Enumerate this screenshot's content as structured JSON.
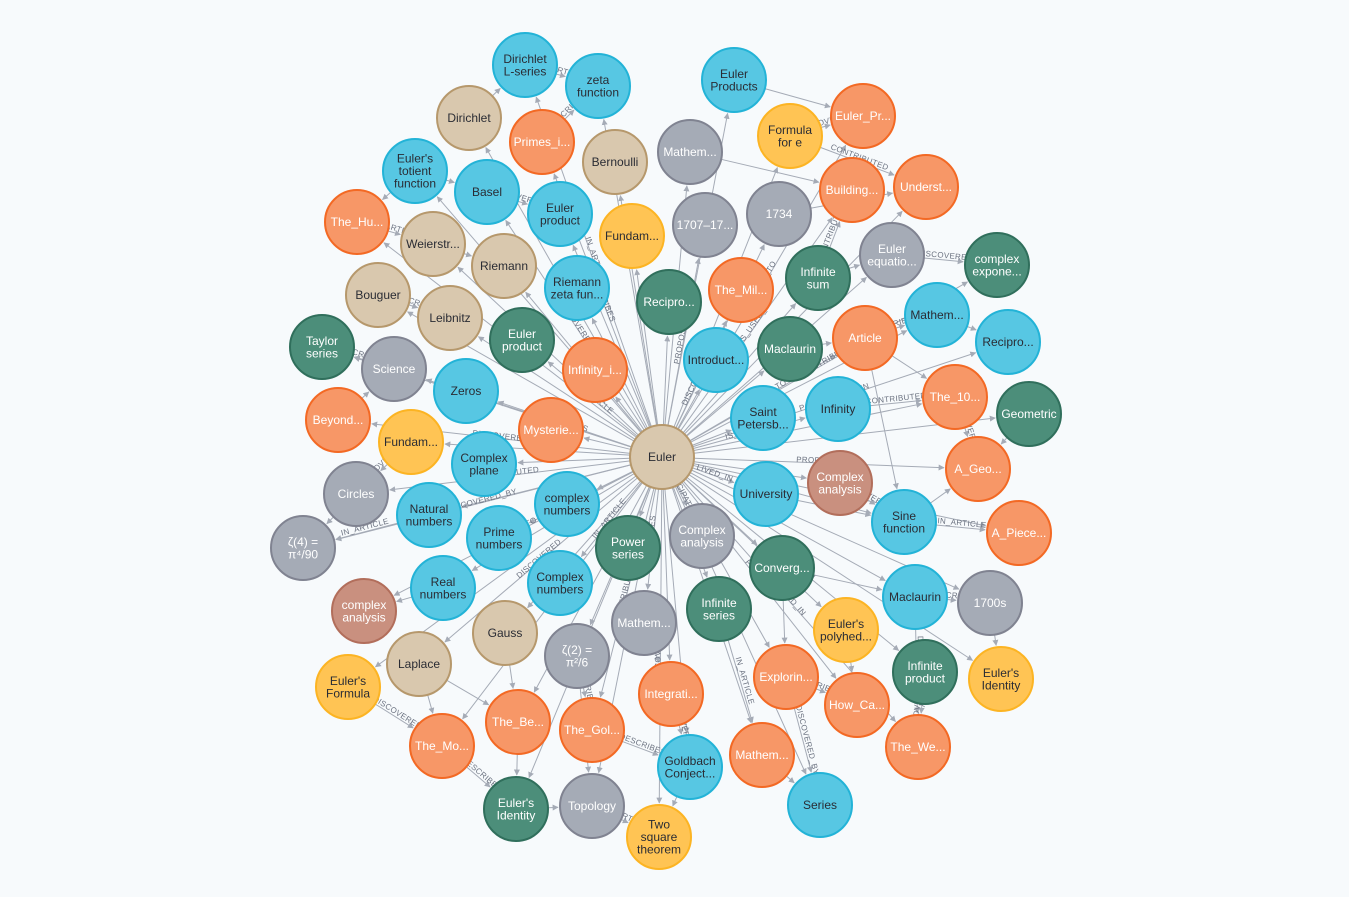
{
  "graph": {
    "colors": {
      "blue": "#57c7e3",
      "orange": "#f79767",
      "yellow": "#ffc454",
      "grey": "#a5abb6",
      "darkgreen": "#4c8e7a",
      "tan": "#d9c8ae",
      "rust": "#c9907f",
      "edge": "#a5abb6"
    },
    "edge_labels": [
      "IN_ARTICLE",
      "RELATED_TO",
      "DESCRIBES",
      "IS_USED_IN",
      "DISCOVERED",
      "PROPOSED",
      "CONTRIBUTED",
      "LIVED_IN",
      "DISCOVERED_BY",
      "PARTICIPATED_IN"
    ],
    "nodes": [
      {
        "id": "euler",
        "lines": [
          "Euler"
        ],
        "color": "tan",
        "icon": "person-node"
      },
      {
        "id": "dirichlet-l",
        "lines": [
          "Dirichlet",
          "L-series"
        ],
        "color": "blue"
      },
      {
        "id": "zeta-fn",
        "lines": [
          "zeta",
          "function"
        ],
        "color": "blue"
      },
      {
        "id": "euler-products",
        "lines": [
          "Euler",
          "Products"
        ],
        "color": "blue"
      },
      {
        "id": "euler-pr",
        "lines": [
          "Euler_Pr..."
        ],
        "color": "orange"
      },
      {
        "id": "formula-e",
        "lines": [
          "Formula",
          "for e"
        ],
        "color": "yellow"
      },
      {
        "id": "dirichlet",
        "lines": [
          "Dirichlet"
        ],
        "color": "tan"
      },
      {
        "id": "primes-i",
        "lines": [
          "Primes_i..."
        ],
        "color": "orange"
      },
      {
        "id": "bernoulli",
        "lines": [
          "Bernoulli"
        ],
        "color": "tan"
      },
      {
        "id": "mathem-top",
        "lines": [
          "Mathem..."
        ],
        "color": "grey"
      },
      {
        "id": "building",
        "lines": [
          "Building..."
        ],
        "color": "orange"
      },
      {
        "id": "underst",
        "lines": [
          "Underst..."
        ],
        "color": "orange"
      },
      {
        "id": "totient",
        "lines": [
          "Euler's",
          "totient",
          "function"
        ],
        "color": "blue"
      },
      {
        "id": "basel",
        "lines": [
          "Basel"
        ],
        "color": "blue"
      },
      {
        "id": "euler-product-1",
        "lines": [
          "Euler",
          "product"
        ],
        "color": "blue"
      },
      {
        "id": "fundam-1",
        "lines": [
          "Fundam..."
        ],
        "color": "yellow"
      },
      {
        "id": "y1707",
        "lines": [
          "1707–17..."
        ],
        "color": "grey"
      },
      {
        "id": "y1734",
        "lines": [
          "1734"
        ],
        "color": "grey"
      },
      {
        "id": "euler-equation",
        "lines": [
          "Euler",
          "equatio..."
        ],
        "color": "grey"
      },
      {
        "id": "complex-expone",
        "lines": [
          "complex",
          "expone..."
        ],
        "color": "darkgreen"
      },
      {
        "id": "the-hu",
        "lines": [
          "The_Hu..."
        ],
        "color": "orange"
      },
      {
        "id": "weierstr",
        "lines": [
          "Weierstr..."
        ],
        "color": "tan"
      },
      {
        "id": "riemann",
        "lines": [
          "Riemann"
        ],
        "color": "tan"
      },
      {
        "id": "riemann-zeta",
        "lines": [
          "Riemann",
          "zeta fun..."
        ],
        "color": "blue"
      },
      {
        "id": "recipro-1",
        "lines": [
          "Recipro..."
        ],
        "color": "darkgreen"
      },
      {
        "id": "the-mil",
        "lines": [
          "The_Mil..."
        ],
        "color": "orange"
      },
      {
        "id": "infinite-sum",
        "lines": [
          "Infinite",
          "sum"
        ],
        "color": "darkgreen"
      },
      {
        "id": "mathem-r",
        "lines": [
          "Mathem..."
        ],
        "color": "blue"
      },
      {
        "id": "recipro-2",
        "lines": [
          "Recipro..."
        ],
        "color": "blue"
      },
      {
        "id": "bouguer",
        "lines": [
          "Bouguer"
        ],
        "color": "tan"
      },
      {
        "id": "leibnitz",
        "lines": [
          "Leibnitz"
        ],
        "color": "tan"
      },
      {
        "id": "euler-product-2",
        "lines": [
          "Euler",
          "product"
        ],
        "color": "darkgreen"
      },
      {
        "id": "introduct",
        "lines": [
          "Introduct..."
        ],
        "color": "blue"
      },
      {
        "id": "maclaurin-1",
        "lines": [
          "Maclaurin"
        ],
        "color": "darkgreen"
      },
      {
        "id": "article",
        "lines": [
          "Article"
        ],
        "color": "orange"
      },
      {
        "id": "taylor",
        "lines": [
          "Taylor",
          "series"
        ],
        "color": "darkgreen"
      },
      {
        "id": "science",
        "lines": [
          "Science"
        ],
        "color": "grey"
      },
      {
        "id": "zeros",
        "lines": [
          "Zeros"
        ],
        "color": "blue"
      },
      {
        "id": "infinity-i",
        "lines": [
          "Infinity_i..."
        ],
        "color": "orange"
      },
      {
        "id": "saint-peter",
        "lines": [
          "Saint",
          "Petersb..."
        ],
        "color": "blue"
      },
      {
        "id": "infinity",
        "lines": [
          "Infinity"
        ],
        "color": "blue"
      },
      {
        "id": "the-10",
        "lines": [
          "The_10..."
        ],
        "color": "orange"
      },
      {
        "id": "geometric",
        "lines": [
          "Geometric"
        ],
        "color": "darkgreen"
      },
      {
        "id": "beyond",
        "lines": [
          "Beyond..."
        ],
        "color": "orange"
      },
      {
        "id": "fundam-2",
        "lines": [
          "Fundam..."
        ],
        "color": "yellow"
      },
      {
        "id": "mysterie",
        "lines": [
          "Mysterie..."
        ],
        "color": "orange"
      },
      {
        "id": "a-geo",
        "lines": [
          "A_Geo..."
        ],
        "color": "orange"
      },
      {
        "id": "complex-plane",
        "lines": [
          "Complex",
          "plane"
        ],
        "color": "blue"
      },
      {
        "id": "complex-analysis-rust",
        "lines": [
          "Complex",
          "analysis"
        ],
        "color": "rust"
      },
      {
        "id": "circles",
        "lines": [
          "Circles"
        ],
        "color": "grey"
      },
      {
        "id": "natural",
        "lines": [
          "Natural",
          "numbers"
        ],
        "color": "blue"
      },
      {
        "id": "complex-numbers-lc",
        "lines": [
          "complex",
          "numbers"
        ],
        "color": "blue"
      },
      {
        "id": "university",
        "lines": [
          "University"
        ],
        "color": "blue"
      },
      {
        "id": "sine",
        "lines": [
          "Sine",
          "function"
        ],
        "color": "blue"
      },
      {
        "id": "a-piece",
        "lines": [
          "A_Piece..."
        ],
        "color": "orange"
      },
      {
        "id": "zeta4",
        "lines": [
          "ζ(4) =",
          "π⁴/90"
        ],
        "color": "grey"
      },
      {
        "id": "prime",
        "lines": [
          "Prime",
          "numbers"
        ],
        "color": "blue"
      },
      {
        "id": "power",
        "lines": [
          "Power",
          "series"
        ],
        "color": "darkgreen"
      },
      {
        "id": "complex-analysis-grey",
        "lines": [
          "Complex",
          "analysis"
        ],
        "color": "grey"
      },
      {
        "id": "converg",
        "lines": [
          "Converg..."
        ],
        "color": "darkgreen"
      },
      {
        "id": "real",
        "lines": [
          "Real",
          "numbers"
        ],
        "color": "blue"
      },
      {
        "id": "complex-numbers-uc",
        "lines": [
          "Complex",
          "numbers"
        ],
        "color": "blue"
      },
      {
        "id": "maclaurin-2",
        "lines": [
          "Maclaurin"
        ],
        "color": "blue"
      },
      {
        "id": "y1700s",
        "lines": [
          "1700s"
        ],
        "color": "grey"
      },
      {
        "id": "complex-analysis-lc",
        "lines": [
          "complex",
          "analysis"
        ],
        "color": "rust"
      },
      {
        "id": "gauss",
        "lines": [
          "Gauss"
        ],
        "color": "tan"
      },
      {
        "id": "zeta2",
        "lines": [
          "ζ(2) =",
          "π²/6"
        ],
        "color": "grey"
      },
      {
        "id": "mathem-mid",
        "lines": [
          "Mathem..."
        ],
        "color": "grey"
      },
      {
        "id": "infinite-series",
        "lines": [
          "Infinite",
          "series"
        ],
        "color": "darkgreen"
      },
      {
        "id": "polyhed",
        "lines": [
          "Euler's",
          "polyhed..."
        ],
        "color": "yellow"
      },
      {
        "id": "infinite-product",
        "lines": [
          "Infinite",
          "product"
        ],
        "color": "darkgreen"
      },
      {
        "id": "identity-y",
        "lines": [
          "Euler's",
          "Identity"
        ],
        "color": "yellow"
      },
      {
        "id": "formula-y",
        "lines": [
          "Euler's",
          "Formula"
        ],
        "color": "yellow"
      },
      {
        "id": "laplace",
        "lines": [
          "Laplace"
        ],
        "color": "tan"
      },
      {
        "id": "integrati",
        "lines": [
          "Integrati..."
        ],
        "color": "orange"
      },
      {
        "id": "explorin",
        "lines": [
          "Explorin..."
        ],
        "color": "orange"
      },
      {
        "id": "how-ca",
        "lines": [
          "How_Ca..."
        ],
        "color": "orange"
      },
      {
        "id": "the-mo",
        "lines": [
          "The_Mo..."
        ],
        "color": "orange"
      },
      {
        "id": "the-be",
        "lines": [
          "The_Be..."
        ],
        "color": "orange"
      },
      {
        "id": "the-gol",
        "lines": [
          "The_Gol..."
        ],
        "color": "orange"
      },
      {
        "id": "goldbach",
        "lines": [
          "Goldbach",
          "Conject..."
        ],
        "color": "blue"
      },
      {
        "id": "mathem-b",
        "lines": [
          "Mathem..."
        ],
        "color": "orange"
      },
      {
        "id": "the-we",
        "lines": [
          "The_We..."
        ],
        "color": "orange"
      },
      {
        "id": "identity-g",
        "lines": [
          "Euler's",
          "Identity"
        ],
        "color": "darkgreen"
      },
      {
        "id": "topology",
        "lines": [
          "Topology"
        ],
        "color": "grey"
      },
      {
        "id": "two-square",
        "lines": [
          "Two",
          "square",
          "theorem"
        ],
        "color": "yellow"
      },
      {
        "id": "series",
        "lines": [
          "Series"
        ],
        "color": "blue"
      }
    ]
  }
}
